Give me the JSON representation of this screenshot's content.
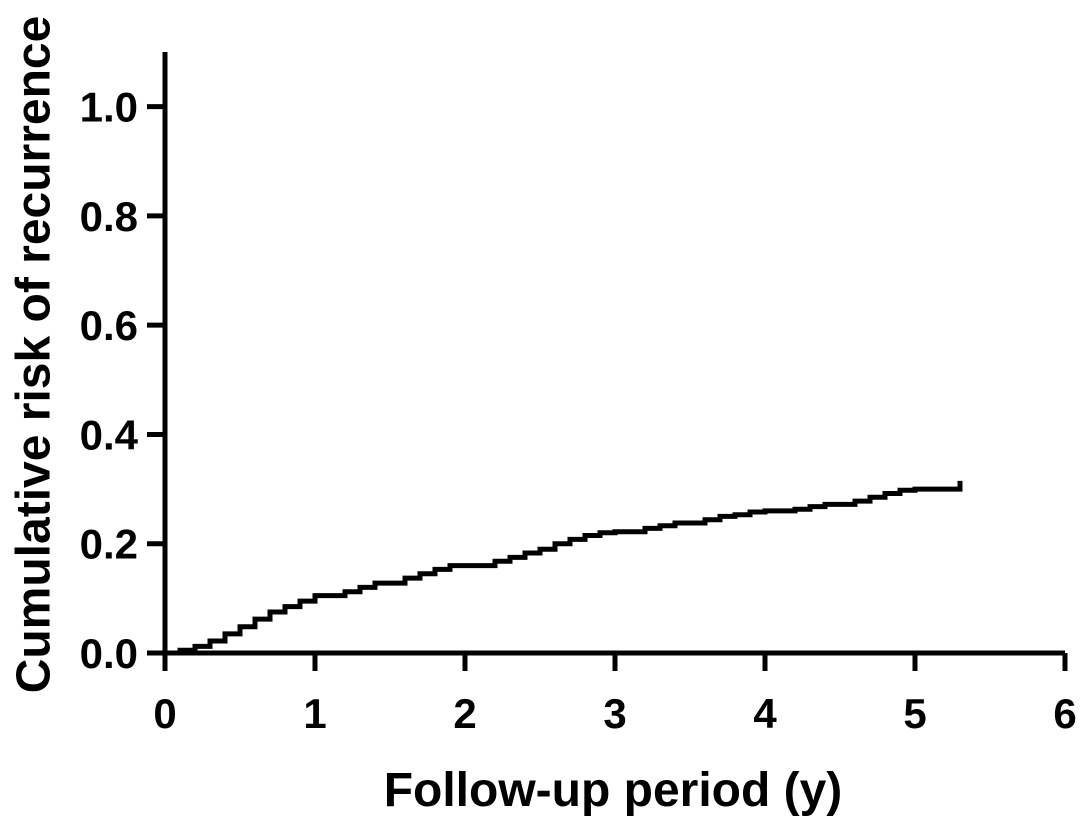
{
  "chart_data": {
    "type": "line",
    "title": "",
    "xlabel": "Follow-up period (y)",
    "ylabel": "Cumulative risk of recurrence",
    "xlim": [
      0,
      6
    ],
    "ylim": [
      0,
      1.1
    ],
    "x_ticks": [
      0,
      1,
      2,
      3,
      4,
      5,
      6
    ],
    "x_tick_labels": [
      "0",
      "1",
      "2",
      "3",
      "4",
      "5",
      "6"
    ],
    "y_ticks": [
      0,
      0.2,
      0.4,
      0.6,
      0.8,
      1.0
    ],
    "y_tick_labels": [
      "0.0",
      "0.2",
      "0.4",
      "0.6",
      "0.8",
      "1.0"
    ],
    "grid": false,
    "line_color": "#000000",
    "step": true,
    "series": [
      {
        "x": [
          0.0,
          0.1,
          0.2,
          0.3,
          0.4,
          0.5,
          0.6,
          0.7,
          0.8,
          0.9,
          1.0,
          1.2,
          1.3,
          1.4,
          1.6,
          1.7,
          1.8,
          1.9,
          2.2,
          2.3,
          2.4,
          2.5,
          2.6,
          2.7,
          2.8,
          2.9,
          3.0,
          3.2,
          3.3,
          3.4,
          3.6,
          3.7,
          3.8,
          3.9,
          4.0,
          4.2,
          4.3,
          4.4,
          4.6,
          4.7,
          4.8,
          4.9,
          5.0,
          5.2,
          5.3
        ],
        "y": [
          0.0,
          0.005,
          0.012,
          0.022,
          0.035,
          0.048,
          0.062,
          0.075,
          0.085,
          0.095,
          0.105,
          0.112,
          0.12,
          0.128,
          0.137,
          0.145,
          0.153,
          0.16,
          0.168,
          0.175,
          0.183,
          0.19,
          0.2,
          0.208,
          0.215,
          0.22,
          0.222,
          0.228,
          0.233,
          0.238,
          0.244,
          0.25,
          0.253,
          0.258,
          0.26,
          0.263,
          0.268,
          0.272,
          0.278,
          0.285,
          0.292,
          0.298,
          0.3,
          0.3,
          0.315
        ]
      }
    ]
  }
}
